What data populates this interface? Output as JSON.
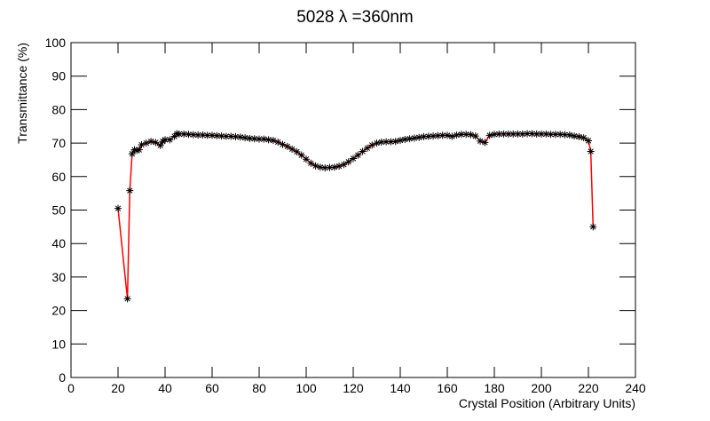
{
  "chart_data": {
    "type": "line",
    "title": "5028 λ =360nm",
    "x_label": "Crystal Position (Arbitrary Units)",
    "y_label": "Transmittance (%)",
    "x": [
      20,
      24,
      25,
      26,
      27,
      28,
      29,
      30,
      32,
      34,
      36,
      38,
      39,
      40,
      42,
      44,
      45,
      46,
      48,
      50,
      52,
      54,
      56,
      58,
      60,
      62,
      64,
      66,
      68,
      70,
      72,
      74,
      76,
      78,
      80,
      82,
      84,
      86,
      88,
      90,
      92,
      94,
      96,
      98,
      100,
      102,
      104,
      106,
      108,
      110,
      112,
      114,
      116,
      118,
      120,
      122,
      124,
      126,
      128,
      130,
      132,
      134,
      136,
      138,
      140,
      142,
      144,
      146,
      148,
      150,
      152,
      154,
      156,
      158,
      160,
      162,
      164,
      166,
      168,
      170,
      172,
      174,
      176,
      178,
      180,
      182,
      184,
      186,
      188,
      190,
      192,
      194,
      196,
      198,
      200,
      202,
      204,
      206,
      208,
      210,
      212,
      214,
      216,
      218,
      220,
      221,
      222
    ],
    "values": [
      50.5,
      23.5,
      55.8,
      66.8,
      68,
      67.8,
      68,
      69.5,
      70,
      70.5,
      70.2,
      69.3,
      70.5,
      71,
      71,
      72,
      72.8,
      72.7,
      72.7,
      72.6,
      72.5,
      72.4,
      72.4,
      72.3,
      72.3,
      72.2,
      72.1,
      72,
      72,
      71.9,
      71.8,
      71.6,
      71.4,
      71.3,
      71.2,
      71.2,
      71,
      70.8,
      70.3,
      69.6,
      69,
      68.2,
      67.4,
      66.4,
      65.2,
      64,
      63.2,
      62.8,
      62.6,
      62.7,
      62.8,
      63.1,
      63.6,
      64.4,
      65.4,
      66.4,
      67.5,
      68.5,
      69.4,
      70,
      70.3,
      70.4,
      70.4,
      70.5,
      70.8,
      71.1,
      71.3,
      71.5,
      71.7,
      71.9,
      72,
      72.1,
      72.2,
      72.3,
      72.3,
      72,
      72.4,
      72.6,
      72.6,
      72.5,
      72.1,
      70.6,
      70.2,
      72.3,
      72.6,
      72.7,
      72.7,
      72.7,
      72.7,
      72.7,
      72.7,
      72.8,
      72.8,
      72.7,
      72.7,
      72.7,
      72.6,
      72.6,
      72.6,
      72.5,
      72.4,
      72.1,
      71.9,
      71.6,
      70.7,
      67.5,
      45
    ],
    "line_color": "#ff0000",
    "marker_color": "#000000",
    "xlim": [
      0,
      240
    ],
    "xticks": [
      0,
      20,
      40,
      60,
      80,
      100,
      120,
      140,
      160,
      180,
      200,
      220,
      240
    ],
    "ylim": [
      0,
      100
    ],
    "yticks": [
      0,
      10,
      20,
      30,
      40,
      50,
      60,
      70,
      80,
      90,
      100
    ]
  }
}
